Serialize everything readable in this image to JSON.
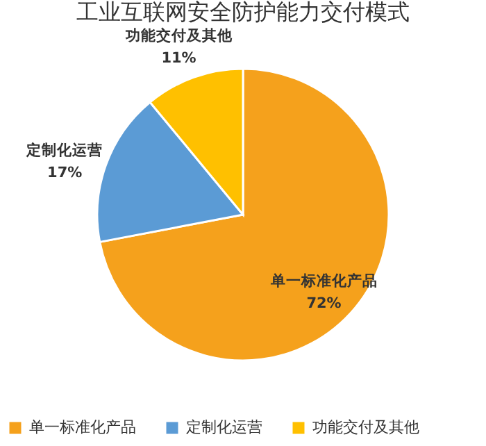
{
  "chart_data": {
    "type": "pie",
    "title": "工业互联网安全防护能力交付模式",
    "categories": [
      "单一标准化产品",
      "定制化运营",
      "功能交付及其他"
    ],
    "values": [
      72,
      17,
      11
    ],
    "colors": [
      "#f5a11c",
      "#5b9bd5",
      "#ffc000"
    ],
    "value_labels": [
      "72%",
      "17%",
      "11%"
    ],
    "legend": "bottom"
  }
}
